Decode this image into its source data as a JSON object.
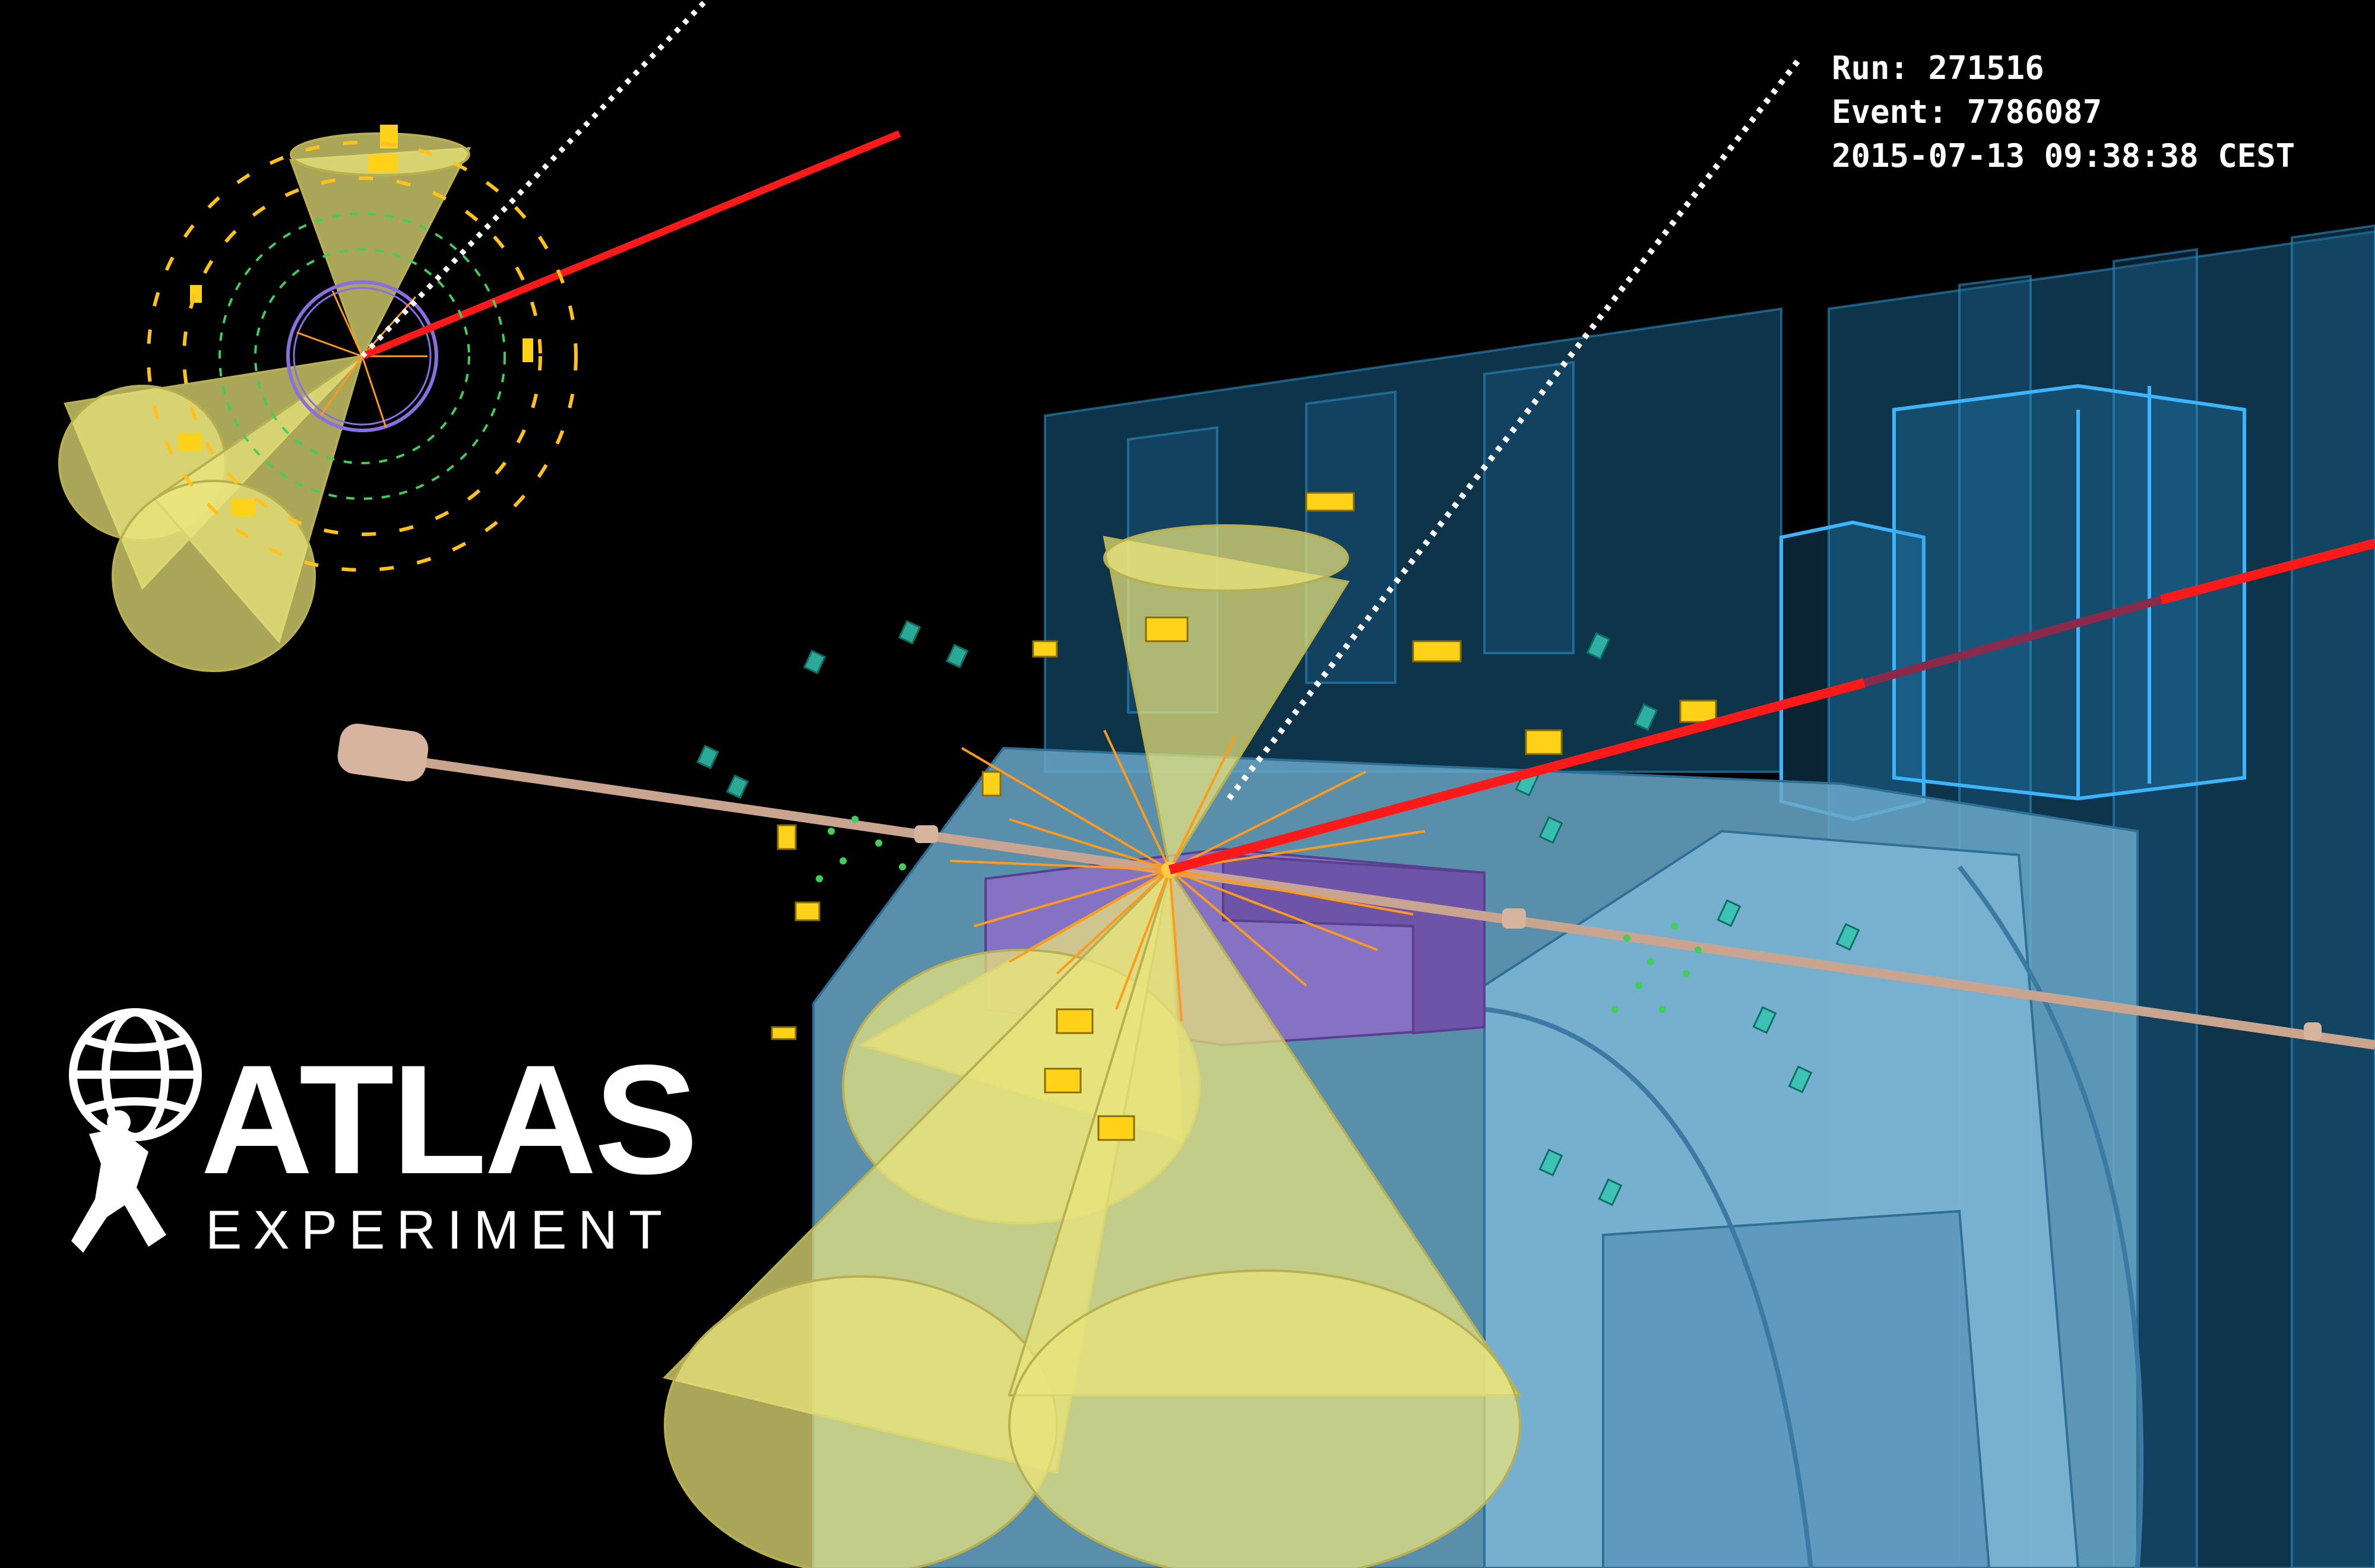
{
  "event_info": {
    "run": "Run: 271516",
    "event": "Event: 7786087",
    "timestamp": "2015-07-13 09:38:38 CEST"
  },
  "logo": {
    "name": "ATLAS",
    "subtitle": "EXPERIMENT"
  },
  "colors": {
    "background": "#000000",
    "muon_track": "#ff1a1a",
    "jet_cone": "#e6e27a",
    "calorimeter_cell": "#ffd21a",
    "muon_chamber": "#1e6e9a",
    "detector_body": "#6fa9c8",
    "inner_detector": "#8a6fc0",
    "beam_pipe": "#c9a58f",
    "hits_green": "#3fcf5a",
    "tracks_orange": "#ff9a1a",
    "missing_et": "#ffffff"
  }
}
